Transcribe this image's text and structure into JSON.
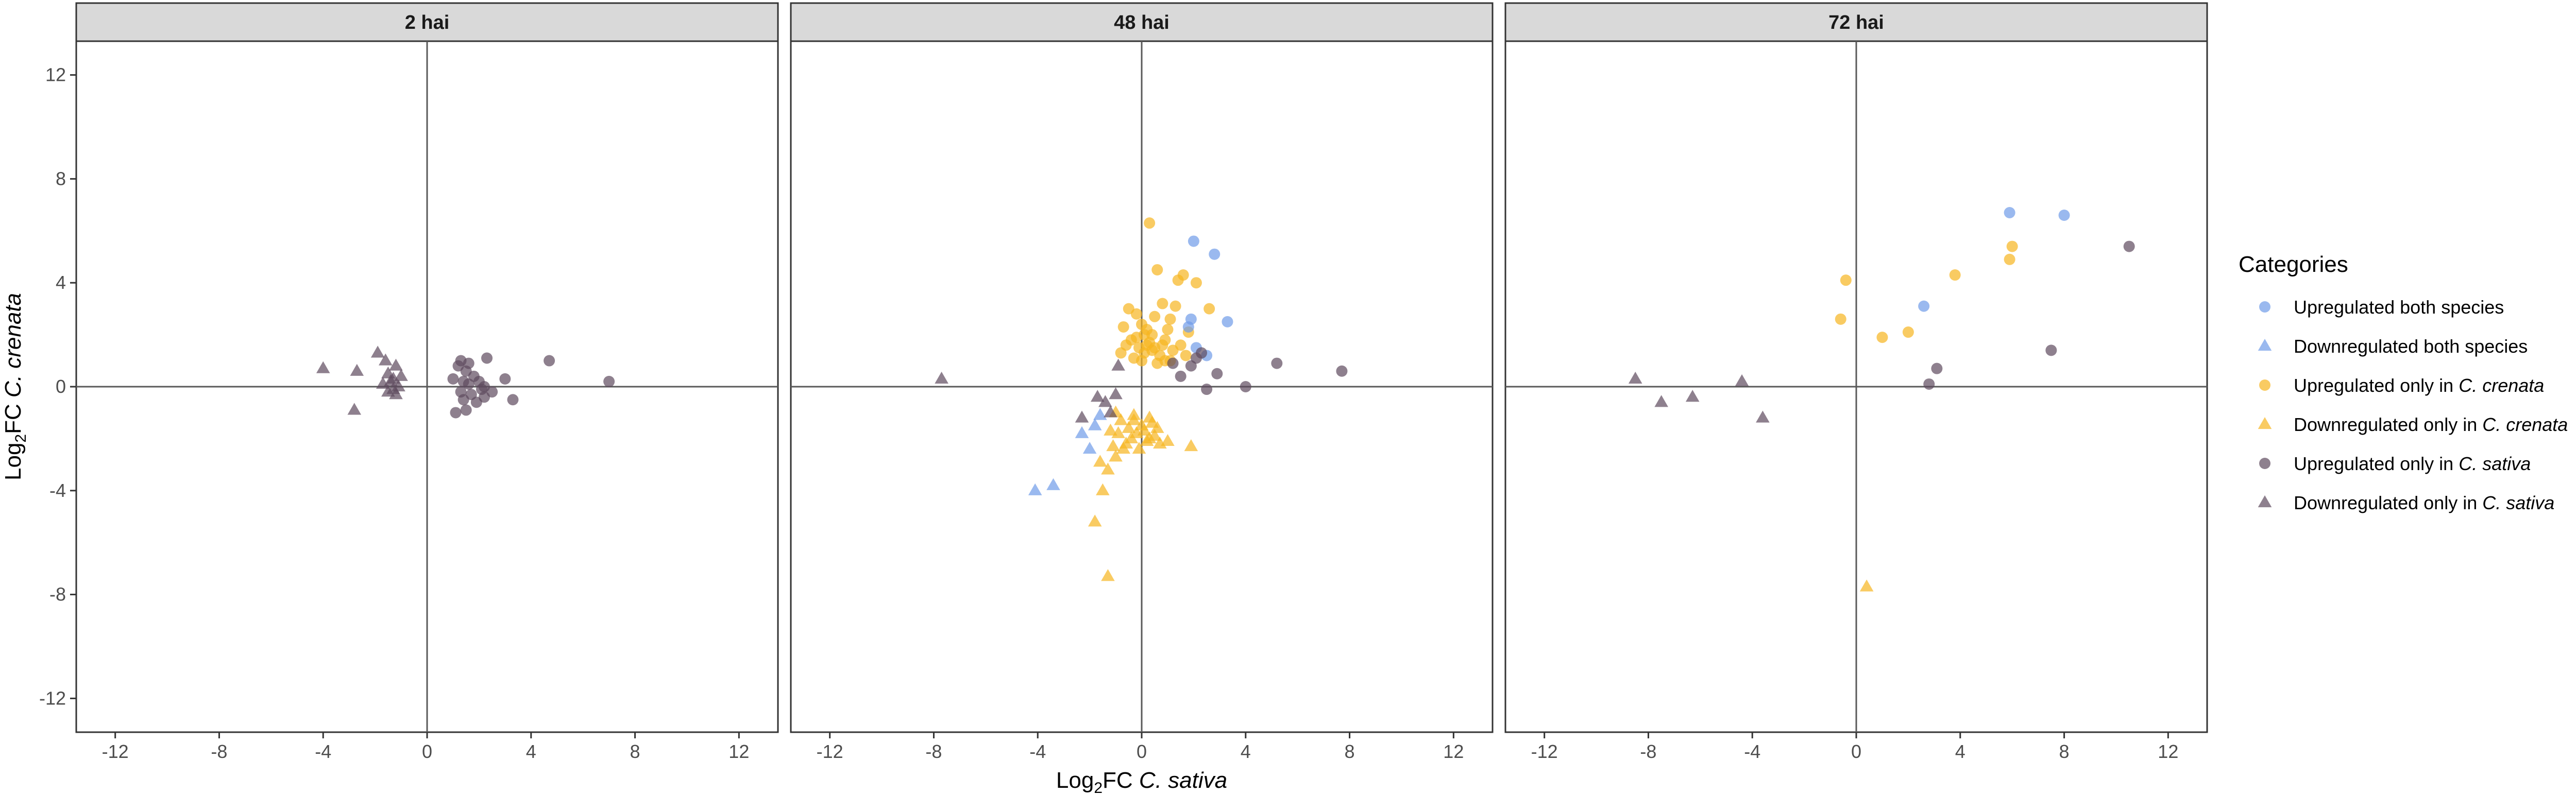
{
  "chart_data": {
    "type": "scatter",
    "xlabel": {
      "prefix": "Log",
      "sub": "2",
      "mid": "FC ",
      "italic": "C. sativa"
    },
    "ylabel": {
      "prefix": "Log",
      "sub": "2",
      "mid": "FC ",
      "italic": "C. crenata"
    },
    "xlim": [
      -13.5,
      13.5
    ],
    "ylim": [
      -13.3,
      13.3
    ],
    "xticks": [
      -12,
      -8,
      -4,
      0,
      4,
      8,
      12
    ],
    "yticks": [
      -12,
      -8,
      -4,
      0,
      4,
      8,
      12
    ],
    "reference_lines": {
      "x": 0,
      "y": 0
    },
    "legend": {
      "title": "Categories",
      "placement": "right"
    },
    "categories": [
      {
        "key": "up_both",
        "label": "Upregulated both species",
        "label_parts": [
          "Upregulated both species"
        ],
        "shape": "circle",
        "color": "#6f9be8"
      },
      {
        "key": "down_both",
        "label": "Downregulated both species",
        "label_parts": [
          "Downregulated both species"
        ],
        "shape": "triangle",
        "color": "#6f9be8"
      },
      {
        "key": "up_crenata",
        "label": "Upregulated only in C. crenata",
        "label_parts": [
          "Upregulated only in ",
          "C. crenata"
        ],
        "shape": "circle",
        "color": "#f7b520"
      },
      {
        "key": "down_crenata",
        "label": "Downregulated only in C. crenata",
        "label_parts": [
          "Downregulated only in ",
          "C. crenata"
        ],
        "shape": "triangle",
        "color": "#f7b520"
      },
      {
        "key": "up_sativa",
        "label": "Upregulated only in C. sativa",
        "label_parts": [
          "Upregulated only in ",
          "C. sativa"
        ],
        "shape": "circle",
        "color": "#5e4a5e"
      },
      {
        "key": "down_sativa",
        "label": "Downregulated only in C. sativa",
        "label_parts": [
          "Downregulated only in ",
          "C. sativa"
        ],
        "shape": "triangle",
        "color": "#5e4a5e"
      }
    ],
    "panels": [
      {
        "title": "2 hai",
        "series": [
          {
            "category": "up_sativa",
            "points": [
              [
                1.0,
                0.3
              ],
              [
                1.2,
                0.8
              ],
              [
                1.3,
                -0.2
              ],
              [
                1.4,
                -0.5
              ],
              [
                1.5,
                0.6
              ],
              [
                1.5,
                -0.9
              ],
              [
                1.6,
                0.1
              ],
              [
                1.7,
                -0.3
              ],
              [
                1.8,
                0.4
              ],
              [
                1.9,
                -0.6
              ],
              [
                2.0,
                0.2
              ],
              [
                2.1,
                -0.1
              ],
              [
                2.2,
                -0.4
              ],
              [
                1.1,
                -1.0
              ],
              [
                1.3,
                1.0
              ],
              [
                1.6,
                0.9
              ],
              [
                2.3,
                1.1
              ],
              [
                2.5,
                -0.2
              ],
              [
                3.0,
                0.3
              ],
              [
                3.3,
                -0.5
              ],
              [
                4.7,
                1.0
              ],
              [
                7.0,
                0.2
              ],
              [
                2.2,
                0.0
              ],
              [
                1.4,
                0.2
              ]
            ]
          },
          {
            "category": "down_sativa",
            "points": [
              [
                -4.0,
                0.7
              ],
              [
                -2.7,
                0.6
              ],
              [
                -2.8,
                -0.9
              ],
              [
                -1.9,
                1.3
              ],
              [
                -1.6,
                1.0
              ],
              [
                -1.5,
                0.5
              ],
              [
                -1.4,
                0.2
              ],
              [
                -1.3,
                -0.1
              ],
              [
                -1.2,
                -0.3
              ],
              [
                -1.1,
                0.0
              ],
              [
                -1.0,
                0.4
              ],
              [
                -1.2,
                0.8
              ],
              [
                -1.5,
                -0.2
              ],
              [
                -1.7,
                0.1
              ],
              [
                -1.3,
                0.3
              ]
            ]
          }
        ]
      },
      {
        "title": "48 hai",
        "series": [
          {
            "category": "up_crenata",
            "points": [
              [
                0.3,
                6.3
              ],
              [
                0.6,
                4.5
              ],
              [
                -0.5,
                3.0
              ],
              [
                -0.2,
                2.8
              ],
              [
                0.0,
                2.4
              ],
              [
                0.2,
                2.2
              ],
              [
                0.4,
                2.0
              ],
              [
                -0.4,
                1.8
              ],
              [
                -0.6,
                1.6
              ],
              [
                -0.1,
                1.5
              ],
              [
                0.1,
                1.3
              ],
              [
                0.3,
                1.7
              ],
              [
                0.5,
                1.5
              ],
              [
                0.7,
                1.2
              ],
              [
                0.9,
                1.8
              ],
              [
                1.1,
                2.6
              ],
              [
                1.3,
                3.1
              ],
              [
                1.4,
                4.1
              ],
              [
                1.6,
                4.3
              ],
              [
                2.1,
                4.0
              ],
              [
                2.6,
                3.0
              ],
              [
                0.8,
                3.2
              ],
              [
                1.0,
                2.2
              ],
              [
                1.2,
                1.4
              ],
              [
                -0.3,
                1.1
              ],
              [
                0.0,
                1.0
              ],
              [
                0.6,
                0.9
              ],
              [
                0.9,
                1.0
              ],
              [
                1.5,
                1.6
              ],
              [
                1.8,
                2.1
              ],
              [
                -0.8,
                1.3
              ],
              [
                -0.7,
                2.3
              ],
              [
                0.5,
                2.7
              ],
              [
                1.7,
                1.2
              ],
              [
                0.2,
                1.6
              ],
              [
                -0.2,
                1.9
              ],
              [
                0.4,
                1.4
              ],
              [
                0.8,
                1.6
              ],
              [
                1.1,
                1.0
              ],
              [
                0.1,
                2.0
              ]
            ]
          },
          {
            "category": "down_crenata",
            "points": [
              [
                0.0,
                -1.5
              ],
              [
                0.3,
                -1.2
              ],
              [
                -0.2,
                -1.8
              ],
              [
                -0.5,
                -1.6
              ],
              [
                -0.8,
                -1.3
              ],
              [
                -1.0,
                -1.0
              ],
              [
                -1.2,
                -1.7
              ],
              [
                -0.4,
                -2.0
              ],
              [
                0.2,
                -2.1
              ],
              [
                0.5,
                -1.9
              ],
              [
                0.7,
                -2.2
              ],
              [
                1.0,
                -2.1
              ],
              [
                1.9,
                -2.3
              ],
              [
                -1.0,
                -2.7
              ],
              [
                -0.7,
                -2.4
              ],
              [
                -1.3,
                -3.2
              ],
              [
                -1.6,
                -2.9
              ],
              [
                -1.5,
                -4.0
              ],
              [
                -1.8,
                -5.2
              ],
              [
                -1.3,
                -7.3
              ],
              [
                -0.3,
                -1.3
              ],
              [
                0.1,
                -1.7
              ],
              [
                -0.6,
                -2.2
              ],
              [
                0.4,
                -1.4
              ],
              [
                -0.9,
                -1.8
              ],
              [
                -1.1,
                -2.3
              ],
              [
                0.6,
                -1.6
              ],
              [
                -0.1,
                -2.4
              ],
              [
                0.3,
                -2.0
              ],
              [
                -0.3,
                -1.1
              ]
            ]
          },
          {
            "category": "up_both",
            "points": [
              [
                2.0,
                5.6
              ],
              [
                2.8,
                5.1
              ],
              [
                3.3,
                2.5
              ],
              [
                1.8,
                2.3
              ],
              [
                2.1,
                1.5
              ],
              [
                2.5,
                1.2
              ],
              [
                1.9,
                2.6
              ]
            ]
          },
          {
            "category": "down_both",
            "points": [
              [
                -4.1,
                -4.0
              ],
              [
                -3.4,
                -3.8
              ],
              [
                -2.0,
                -2.4
              ],
              [
                -1.8,
                -1.5
              ],
              [
                -1.6,
                -1.1
              ],
              [
                -2.3,
                -1.8
              ]
            ]
          },
          {
            "category": "up_sativa",
            "points": [
              [
                1.5,
                0.4
              ],
              [
                1.9,
                0.8
              ],
              [
                2.1,
                1.1
              ],
              [
                2.5,
                -0.1
              ],
              [
                2.9,
                0.5
              ],
              [
                4.0,
                0.0
              ],
              [
                5.2,
                0.9
              ],
              [
                7.7,
                0.6
              ],
              [
                2.3,
                1.3
              ],
              [
                1.2,
                0.9
              ]
            ]
          },
          {
            "category": "down_sativa",
            "points": [
              [
                -7.7,
                0.3
              ],
              [
                -1.7,
                -0.4
              ],
              [
                -1.0,
                -0.3
              ],
              [
                -1.2,
                -1.0
              ],
              [
                -0.9,
                0.8
              ],
              [
                -2.3,
                -1.2
              ],
              [
                -1.4,
                -0.6
              ]
            ]
          }
        ]
      },
      {
        "title": "72 hai",
        "series": [
          {
            "category": "up_both",
            "points": [
              [
                5.9,
                6.7
              ],
              [
                8.0,
                6.6
              ],
              [
                2.6,
                3.1
              ]
            ]
          },
          {
            "category": "up_crenata",
            "points": [
              [
                -0.4,
                4.1
              ],
              [
                -0.6,
                2.6
              ],
              [
                1.0,
                1.9
              ],
              [
                2.0,
                2.1
              ],
              [
                3.8,
                4.3
              ],
              [
                6.0,
                5.4
              ],
              [
                5.9,
                4.9
              ]
            ]
          },
          {
            "category": "down_crenata",
            "points": [
              [
                0.4,
                -7.7
              ]
            ]
          },
          {
            "category": "up_sativa",
            "points": [
              [
                10.5,
                5.4
              ],
              [
                7.5,
                1.4
              ],
              [
                3.1,
                0.7
              ],
              [
                2.8,
                0.1
              ]
            ]
          },
          {
            "category": "down_sativa",
            "points": [
              [
                -8.5,
                0.3
              ],
              [
                -7.5,
                -0.6
              ],
              [
                -6.3,
                -0.4
              ],
              [
                -4.4,
                0.2
              ],
              [
                -3.6,
                -1.2
              ]
            ]
          }
        ]
      }
    ]
  }
}
